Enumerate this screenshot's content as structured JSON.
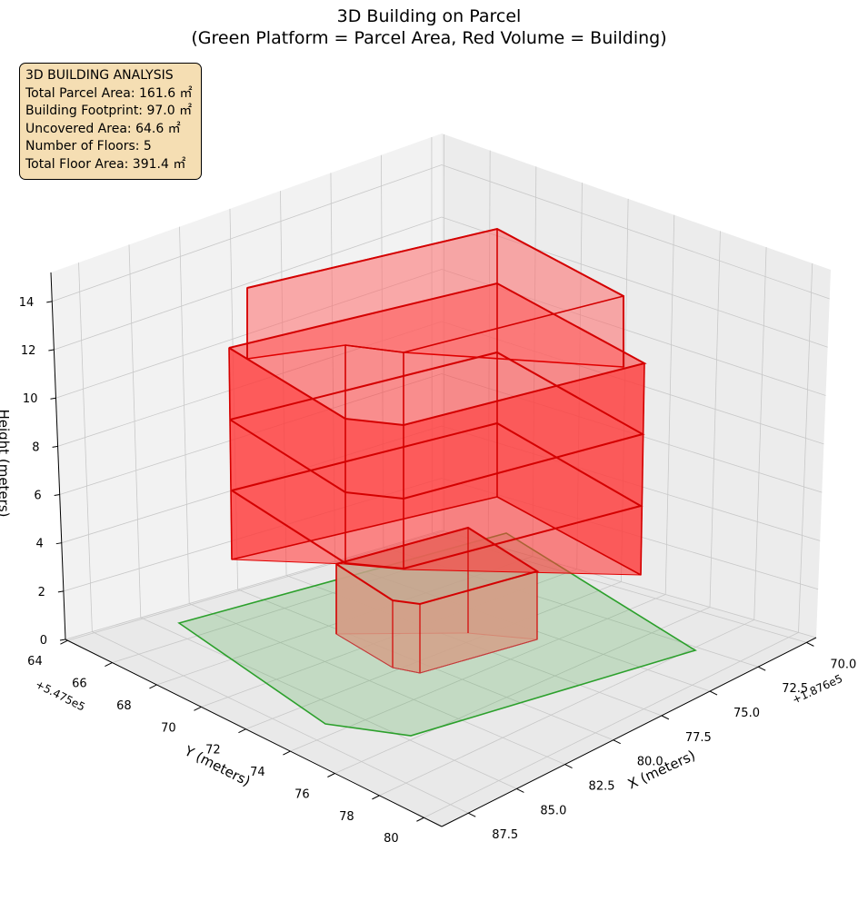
{
  "chart_data": {
    "type": "3d-polygons",
    "title_line1": "3D Building on Parcel",
    "title_line2": "(Green Platform = Parcel Area, Red Volume = Building)",
    "axes": {
      "x": {
        "label": "X (meters)",
        "offset": "+1.876e5",
        "ticks": [
          "70.0",
          "72.5",
          "75.0",
          "77.5",
          "80.0",
          "82.5",
          "85.0",
          "87.5"
        ]
      },
      "y": {
        "label": "Y (meters)",
        "offset": "+5.475e5",
        "ticks": [
          "64",
          "66",
          "68",
          "70",
          "72",
          "74",
          "76",
          "78",
          "80"
        ]
      },
      "z": {
        "label": "Height (meters)",
        "ticks": [
          "0",
          "2",
          "4",
          "6",
          "8",
          "10",
          "12",
          "14"
        ]
      }
    },
    "info_box": {
      "heading": "3D BUILDING ANALYSIS",
      "total_parcel_area": "Total Parcel Area: 161.6 ㎡",
      "building_footprint": "Building Footprint: 97.0 ㎡",
      "uncovered_area": "Uncovered Area: 64.6 ㎡",
      "number_of_floors": "Number of Floors: 5",
      "total_floor_area": "Total Floor Area: 391.4 ㎡"
    },
    "parcel": {
      "color": "#2ca02c",
      "fill": "#d6f2d6",
      "elevation_m": 0
    },
    "building": {
      "color": "#e00000",
      "floors": 5,
      "floor_height_m": 3,
      "total_height_m": 15
    },
    "grid": true
  }
}
